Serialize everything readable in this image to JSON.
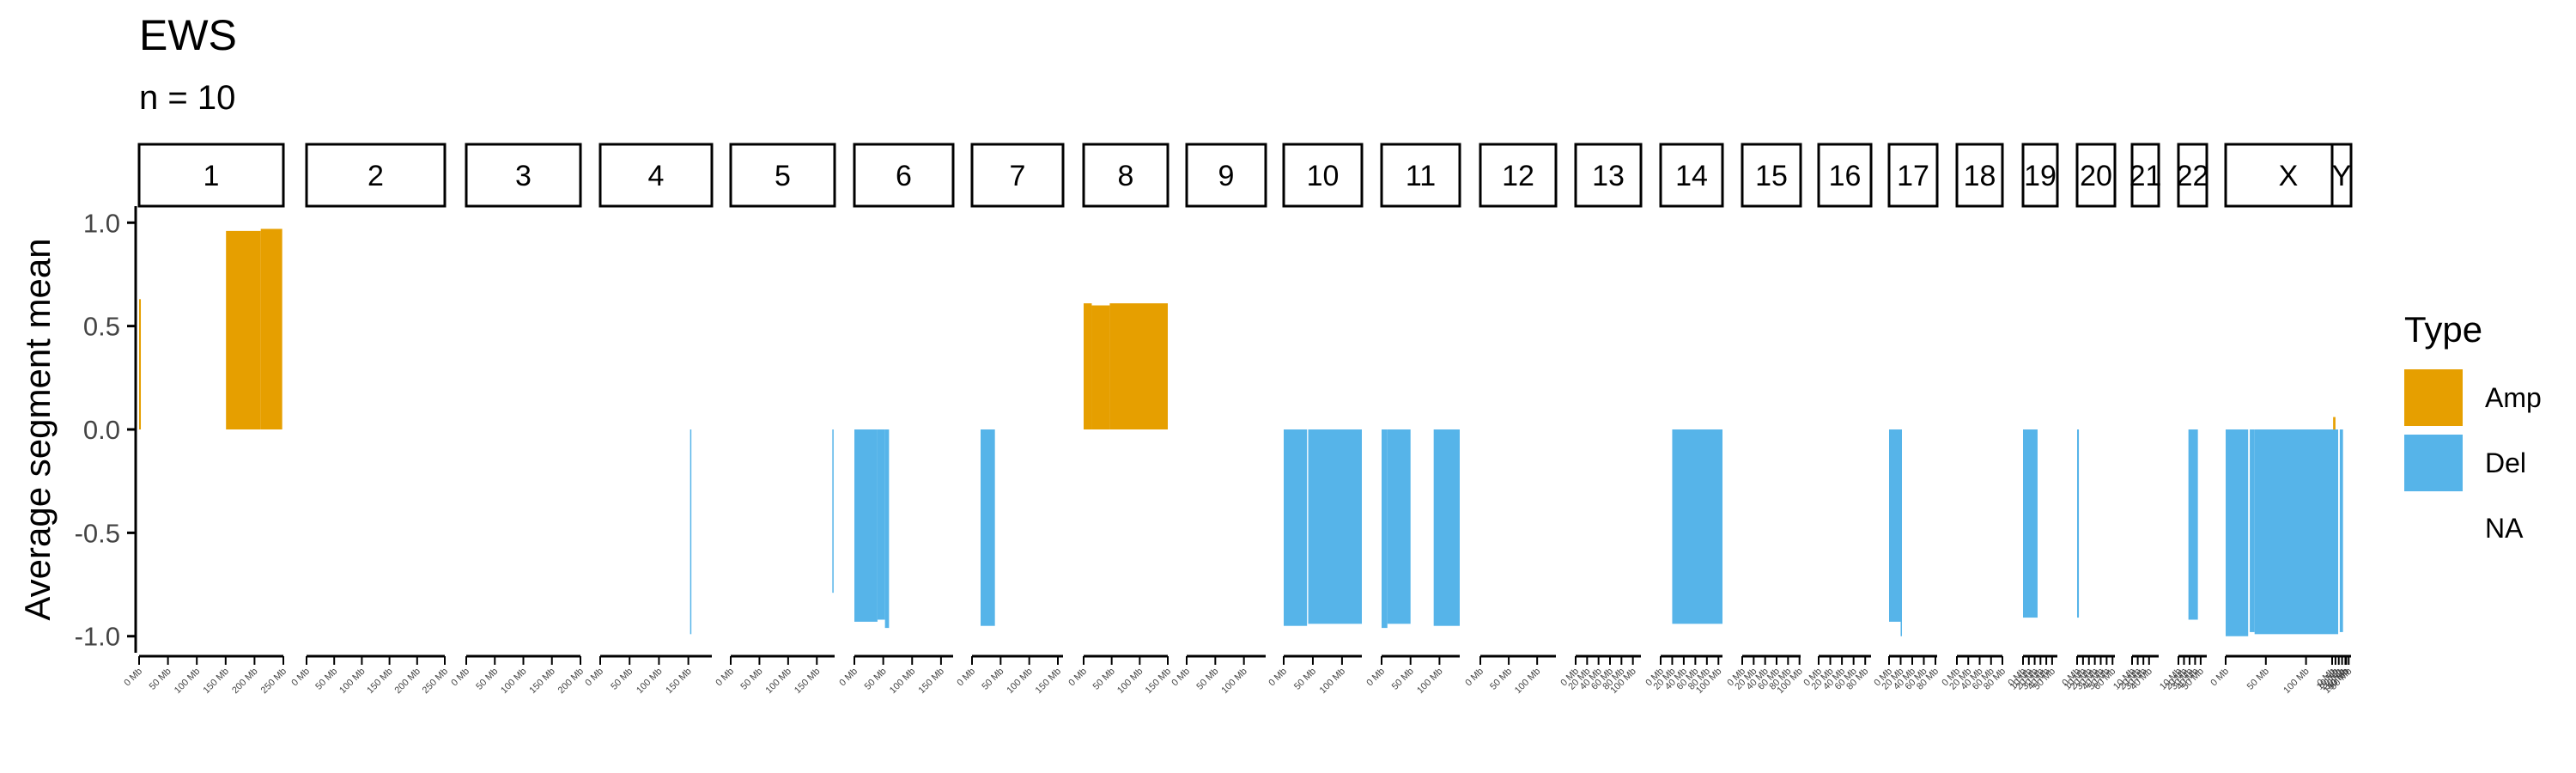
{
  "title": "EWS",
  "subtitle": "n = 10",
  "legend": {
    "title": "Type",
    "items": [
      {
        "label": "Amp",
        "color": "#E69F00"
      },
      {
        "label": "Del",
        "color": "#56B4E9"
      },
      {
        "label": "NA",
        "color": "none"
      }
    ]
  },
  "chart_data": {
    "type": "bar",
    "ylabel": "Average segment mean",
    "xlabel": "",
    "ylim": [
      -1.08,
      1.08
    ],
    "yticks": [
      1.0,
      0.5,
      0.0,
      -0.5,
      -1.0
    ],
    "ytick_labels": [
      "1.0",
      "0.5",
      "0.0",
      "-0.5",
      "-1.0"
    ],
    "grid": false,
    "legend_position": "right",
    "facets": [
      {
        "label": "1",
        "length_mb": 249,
        "xticks": [
          "0 Mb",
          "50 Mb",
          "100 Mb",
          "150 Mb",
          "200 Mb",
          "250 Mb"
        ],
        "segments": [
          {
            "start": 0,
            "end": 3,
            "value": 0.63,
            "type": "Amp"
          },
          {
            "start": 150,
            "end": 210,
            "value": 0.96,
            "type": "Amp"
          },
          {
            "start": 210,
            "end": 247,
            "value": 0.97,
            "type": "Amp"
          }
        ]
      },
      {
        "label": "2",
        "length_mb": 242,
        "xticks": [
          "0 Mb",
          "50 Mb",
          "100 Mb",
          "150 Mb",
          "200 Mb",
          "250 Mb"
        ],
        "segments": []
      },
      {
        "label": "3",
        "length_mb": 198,
        "xticks": [
          "0 Mb",
          "50 Mb",
          "100 Mb",
          "150 Mb",
          "200 Mb"
        ],
        "segments": []
      },
      {
        "label": "4",
        "length_mb": 190,
        "xticks": [
          "0 Mb",
          "50 Mb",
          "100 Mb",
          "150 Mb"
        ],
        "segments": [
          {
            "start": 153,
            "end": 155,
            "value": -0.99,
            "type": "Del"
          }
        ]
      },
      {
        "label": "5",
        "length_mb": 181,
        "xticks": [
          "0 Mb",
          "50 Mb",
          "100 Mb",
          "150 Mb"
        ],
        "segments": [
          {
            "start": 177,
            "end": 179,
            "value": -0.79,
            "type": "Del"
          }
        ]
      },
      {
        "label": "6",
        "length_mb": 171,
        "xticks": [
          "0 Mb",
          "50 Mb",
          "100 Mb",
          "150 Mb"
        ],
        "segments": [
          {
            "start": 0,
            "end": 40,
            "value": -0.93,
            "type": "Del"
          },
          {
            "start": 40,
            "end": 53,
            "value": -0.92,
            "type": "Del"
          },
          {
            "start": 53,
            "end": 60,
            "value": -0.96,
            "type": "Del"
          }
        ]
      },
      {
        "label": "7",
        "length_mb": 159,
        "xticks": [
          "0 Mb",
          "50 Mb",
          "100 Mb",
          "150 Mb"
        ],
        "segments": [
          {
            "start": 15,
            "end": 40,
            "value": -0.95,
            "type": "Del"
          }
        ]
      },
      {
        "label": "8",
        "length_mb": 145,
        "xticks": [
          "0 Mb",
          "50 Mb",
          "100 Mb",
          "150 Mb"
        ],
        "segments": [
          {
            "start": 0,
            "end": 14,
            "value": 0.61,
            "type": "Amp"
          },
          {
            "start": 14,
            "end": 45,
            "value": 0.6,
            "type": "Amp"
          },
          {
            "start": 45,
            "end": 145,
            "value": 0.61,
            "type": "Amp"
          }
        ]
      },
      {
        "label": "9",
        "length_mb": 138,
        "xticks": [
          "0 Mb",
          "50 Mb",
          "100 Mb"
        ],
        "segments": []
      },
      {
        "label": "10",
        "length_mb": 134,
        "xticks": [
          "0 Mb",
          "50 Mb",
          "100 Mb"
        ],
        "segments": [
          {
            "start": 0,
            "end": 40,
            "value": -0.95,
            "type": "Del"
          },
          {
            "start": 42,
            "end": 134,
            "value": -0.94,
            "type": "Del"
          }
        ]
      },
      {
        "label": "11",
        "length_mb": 135,
        "xticks": [
          "0 Mb",
          "50 Mb",
          "100 Mb"
        ],
        "segments": [
          {
            "start": 0,
            "end": 10,
            "value": -0.96,
            "type": "Del"
          },
          {
            "start": 10,
            "end": 50,
            "value": -0.94,
            "type": "Del"
          },
          {
            "start": 90,
            "end": 135,
            "value": -0.95,
            "type": "Del"
          }
        ]
      },
      {
        "label": "12",
        "length_mb": 133,
        "xticks": [
          "0 Mb",
          "50 Mb",
          "100 Mb"
        ],
        "segments": []
      },
      {
        "label": "13",
        "length_mb": 114,
        "xticks": [
          "0 Mb",
          "20 Mb",
          "40 Mb",
          "60 Mb",
          "80 Mb",
          "100 Mb"
        ],
        "segments": []
      },
      {
        "label": "14",
        "length_mb": 107,
        "xticks": [
          "0 Mb",
          "20 Mb",
          "40 Mb",
          "60 Mb",
          "80 Mb",
          "100 Mb"
        ],
        "segments": [
          {
            "start": 20,
            "end": 107,
            "value": -0.94,
            "type": "Del"
          }
        ]
      },
      {
        "label": "15",
        "length_mb": 102,
        "xticks": [
          "0 Mb",
          "20 Mb",
          "40 Mb",
          "60 Mb",
          "80 Mb",
          "100 Mb"
        ],
        "segments": []
      },
      {
        "label": "16",
        "length_mb": 90,
        "xticks": [
          "0 Mb",
          "20 Mb",
          "40 Mb",
          "60 Mb",
          "80 Mb"
        ],
        "segments": []
      },
      {
        "label": "17",
        "length_mb": 83,
        "xticks": [
          "0 Mb",
          "20 Mb",
          "40 Mb",
          "60 Mb",
          "80 Mb"
        ],
        "segments": [
          {
            "start": 0,
            "end": 20,
            "value": -0.93,
            "type": "Del"
          },
          {
            "start": 20,
            "end": 22,
            "value": -1.0,
            "type": "Del"
          }
        ]
      },
      {
        "label": "18",
        "length_mb": 80,
        "xticks": [
          "0 Mb",
          "20 Mb",
          "40 Mb",
          "60 Mb",
          "80 Mb"
        ],
        "segments": []
      },
      {
        "label": "19",
        "length_mb": 59,
        "xticks": [
          "0 Mb",
          "10 Mb",
          "20 Mb",
          "30 Mb",
          "40 Mb",
          "50 Mb"
        ],
        "segments": [
          {
            "start": 0,
            "end": 25,
            "value": -0.91,
            "type": "Del"
          }
        ]
      },
      {
        "label": "20",
        "length_mb": 64,
        "xticks": [
          "0 Mb",
          "10 Mb",
          "20 Mb",
          "30 Mb",
          "40 Mb",
          "50 Mb",
          "60 Mb"
        ],
        "segments": [
          {
            "start": 0,
            "end": 3,
            "value": -0.91,
            "type": "Del"
          }
        ]
      },
      {
        "label": "21",
        "length_mb": 47,
        "xticks": [
          "10 Mb",
          "20 Mb",
          "30 Mb",
          "40 Mb"
        ],
        "segments": []
      },
      {
        "label": "22",
        "length_mb": 51,
        "xticks": [
          "10 Mb",
          "20 Mb",
          "30 Mb",
          "40 Mb",
          "50 Mb"
        ],
        "segments": [
          {
            "start": 18,
            "end": 35,
            "value": -0.92,
            "type": "Del"
          }
        ]
      },
      {
        "label": "X",
        "length_mb": 156,
        "xticks": [
          "0 Mb",
          "50 Mb",
          "100 Mb",
          "150 Mb"
        ],
        "segments": [
          {
            "start": 0,
            "end": 28,
            "value": -1.0,
            "type": "Del"
          },
          {
            "start": 30,
            "end": 36,
            "value": -0.98,
            "type": "Del"
          },
          {
            "start": 36,
            "end": 140,
            "value": -0.99,
            "type": "Del"
          },
          {
            "start": 142,
            "end": 146,
            "value": -0.98,
            "type": "Del"
          }
        ]
      },
      {
        "label": "Y",
        "length_mb": 57,
        "xticks": [
          "0 Mb",
          "10 Mb",
          "20 Mb",
          "30 Mb",
          "40 Mb",
          "50 Mb"
        ],
        "segments": [
          {
            "start": 3,
            "end": 10,
            "value": 0.06,
            "type": "Amp"
          }
        ]
      }
    ]
  }
}
